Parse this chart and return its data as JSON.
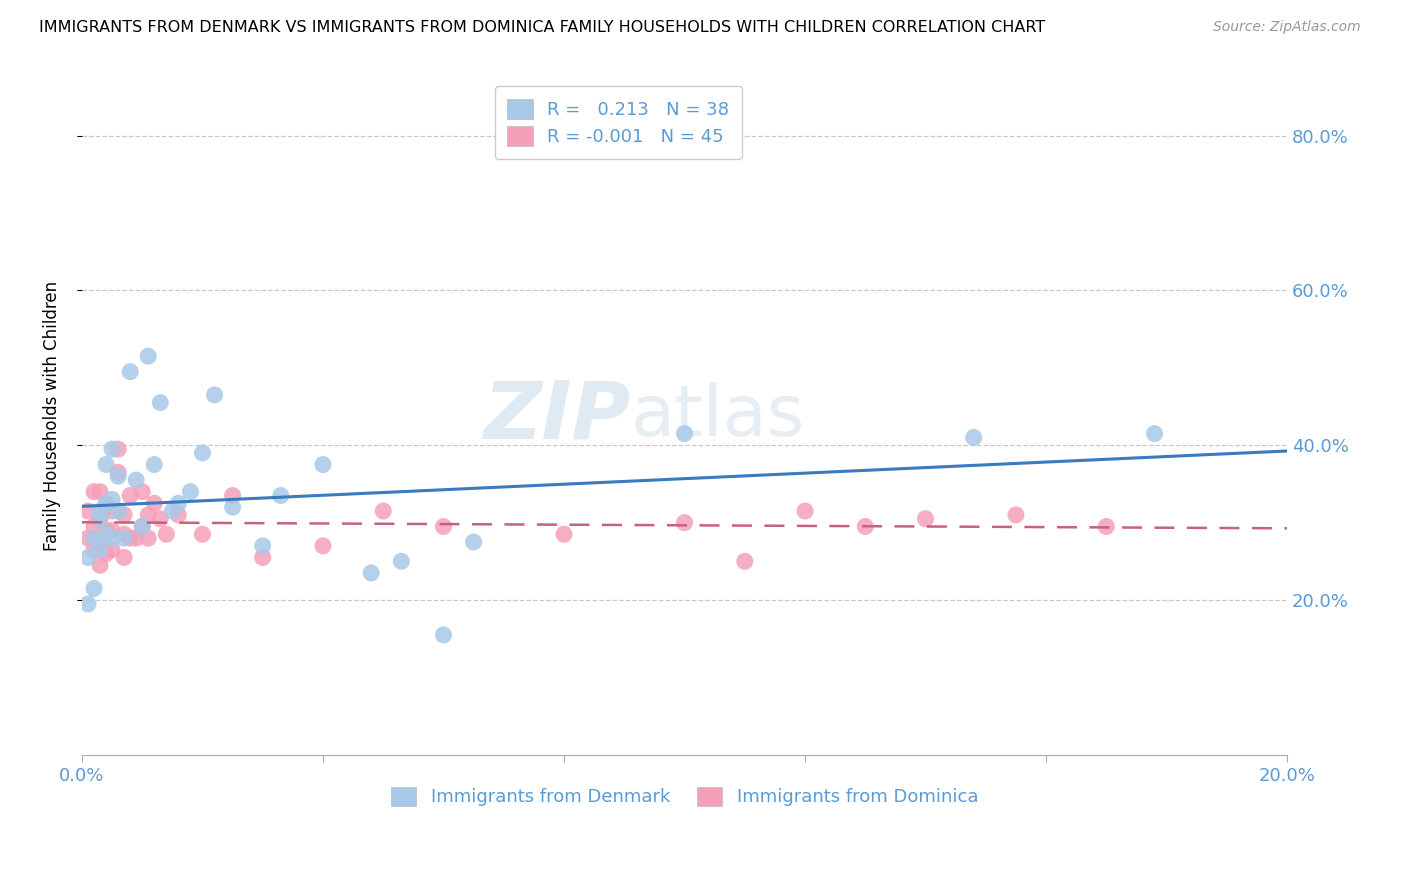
{
  "title": "IMMIGRANTS FROM DENMARK VS IMMIGRANTS FROM DOMINICA FAMILY HOUSEHOLDS WITH CHILDREN CORRELATION CHART",
  "source": "Source: ZipAtlas.com",
  "ylabel": "Family Households with Children",
  "xmin": 0.0,
  "xmax": 0.2,
  "ymin": 0.0,
  "ymax": 0.875,
  "yticks": [
    0.2,
    0.4,
    0.6,
    0.8
  ],
  "ytick_labels": [
    "20.0%",
    "40.0%",
    "60.0%",
    "80.0%"
  ],
  "xticks": [
    0.0,
    0.04,
    0.08,
    0.12,
    0.16,
    0.2
  ],
  "xtick_labels": [
    "0.0%",
    "",
    "",
    "",
    "",
    "20.0%"
  ],
  "legend_denmark": "Immigrants from Denmark",
  "legend_dominica": "Immigrants from Dominica",
  "r_denmark": "0.213",
  "n_denmark": "38",
  "r_dominica": "-0.001",
  "n_dominica": "45",
  "color_denmark": "#a8c8e8",
  "color_dominica": "#f4a0b8",
  "line_color_denmark": "#3a7abf",
  "line_color_dominica": "#c86080",
  "watermark_zip": "ZIP",
  "watermark_atlas": "atlas",
  "denmark_x": [
    0.001,
    0.001,
    0.002,
    0.002,
    0.003,
    0.003,
    0.003,
    0.004,
    0.004,
    0.004,
    0.005,
    0.005,
    0.005,
    0.006,
    0.006,
    0.007,
    0.008,
    0.009,
    0.01,
    0.011,
    0.012,
    0.013,
    0.015,
    0.016,
    0.018,
    0.02,
    0.022,
    0.025,
    0.03,
    0.033,
    0.04,
    0.048,
    0.053,
    0.06,
    0.065,
    0.1,
    0.148,
    0.178
  ],
  "denmark_y": [
    0.255,
    0.195,
    0.215,
    0.28,
    0.265,
    0.305,
    0.315,
    0.285,
    0.325,
    0.375,
    0.28,
    0.33,
    0.395,
    0.315,
    0.36,
    0.28,
    0.495,
    0.355,
    0.295,
    0.515,
    0.375,
    0.455,
    0.315,
    0.325,
    0.34,
    0.39,
    0.465,
    0.32,
    0.27,
    0.335,
    0.375,
    0.235,
    0.25,
    0.155,
    0.275,
    0.415,
    0.41,
    0.415
  ],
  "dominica_x": [
    0.001,
    0.001,
    0.002,
    0.002,
    0.002,
    0.003,
    0.003,
    0.003,
    0.003,
    0.004,
    0.004,
    0.004,
    0.005,
    0.005,
    0.005,
    0.006,
    0.006,
    0.007,
    0.007,
    0.007,
    0.008,
    0.008,
    0.009,
    0.01,
    0.01,
    0.011,
    0.011,
    0.012,
    0.013,
    0.014,
    0.016,
    0.02,
    0.025,
    0.03,
    0.04,
    0.05,
    0.06,
    0.08,
    0.1,
    0.11,
    0.12,
    0.13,
    0.14,
    0.155,
    0.17
  ],
  "dominica_y": [
    0.28,
    0.315,
    0.265,
    0.295,
    0.34,
    0.245,
    0.275,
    0.305,
    0.34,
    0.26,
    0.29,
    0.32,
    0.265,
    0.29,
    0.315,
    0.365,
    0.395,
    0.255,
    0.285,
    0.31,
    0.28,
    0.335,
    0.28,
    0.295,
    0.34,
    0.28,
    0.31,
    0.325,
    0.305,
    0.285,
    0.31,
    0.285,
    0.335,
    0.255,
    0.27,
    0.315,
    0.295,
    0.285,
    0.3,
    0.25,
    0.315,
    0.295,
    0.305,
    0.31,
    0.295
  ]
}
